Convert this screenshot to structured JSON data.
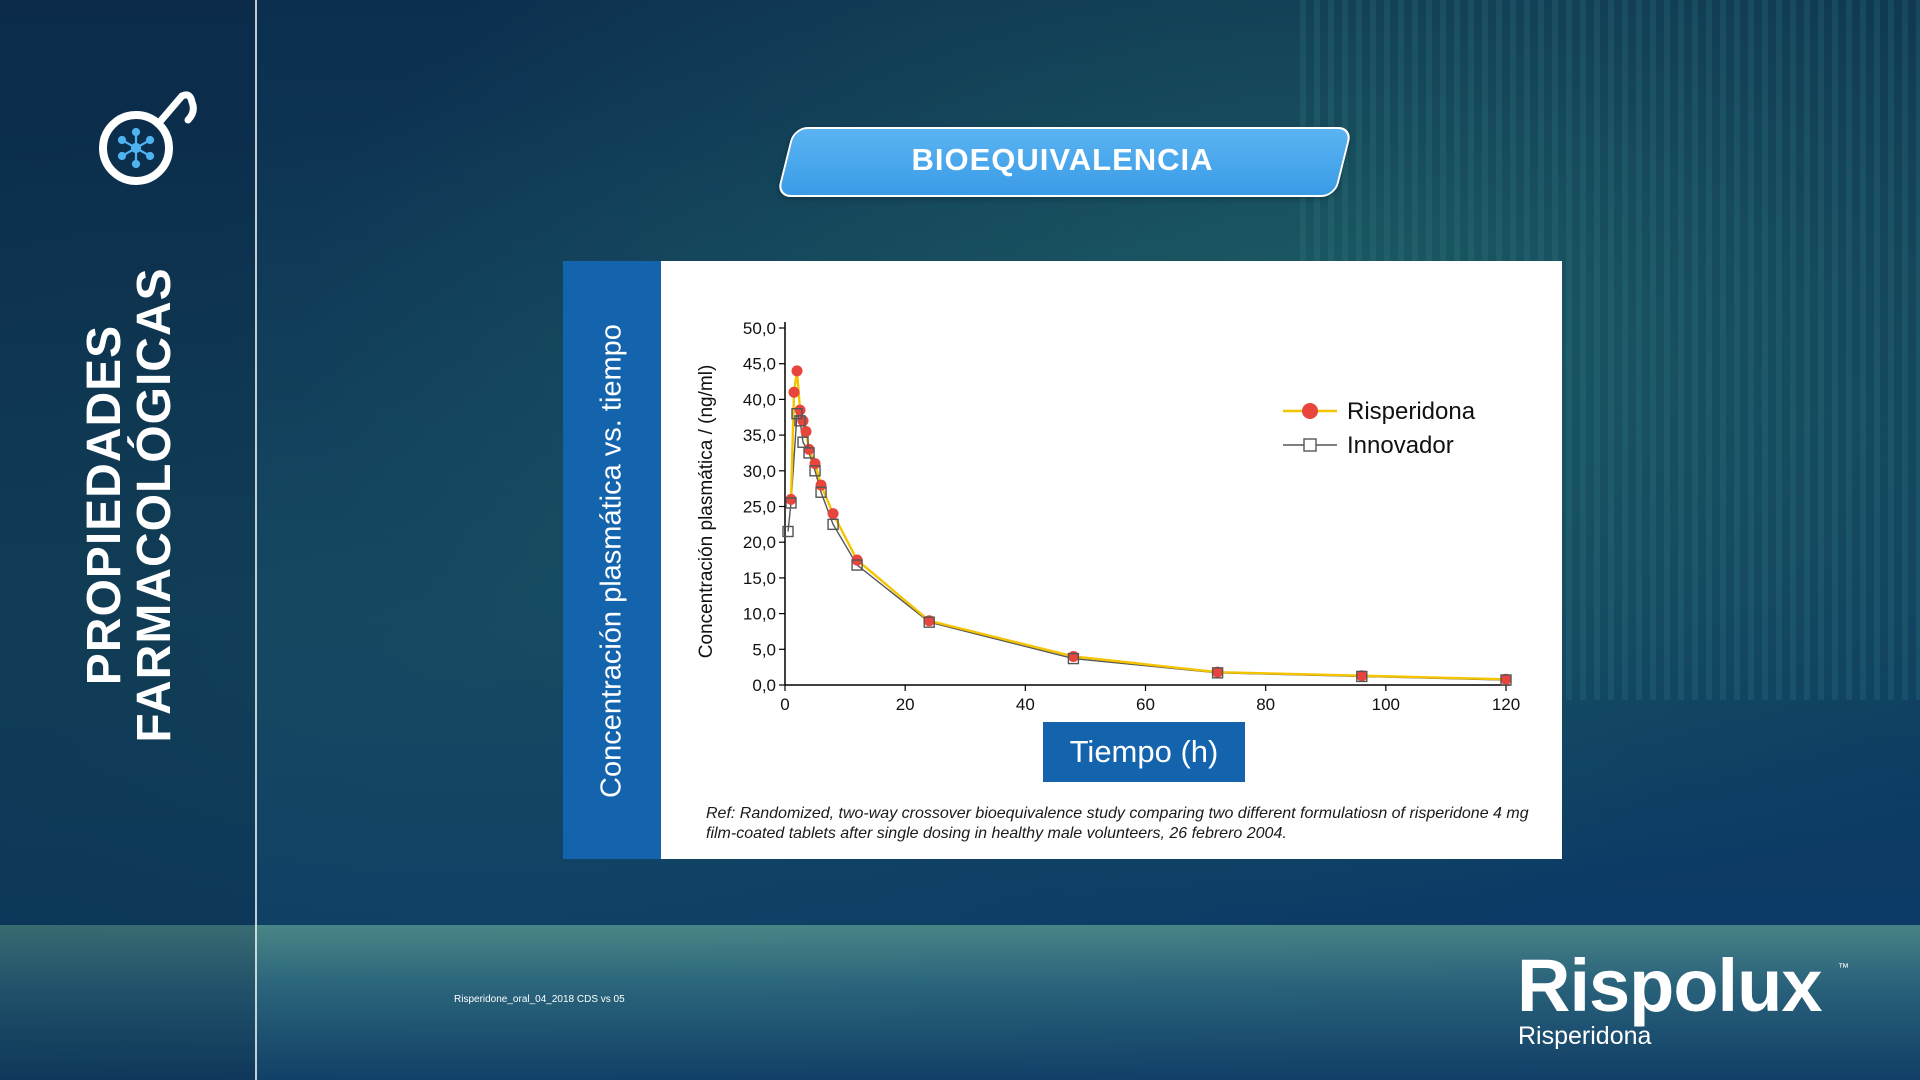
{
  "sidebar": {
    "title_line1": "PROPIEDADES",
    "title_line2": "FARMACOLÓGICAS",
    "icon": "molecule-note-icon"
  },
  "banner": {
    "title": "BIOEQUIVALENCIA"
  },
  "card": {
    "side_label": "Concentración plasmática vs. tiempo",
    "reference": "Ref: Randomized, two-way crossover bioequivalence study comparing two different formulatiosn of risperidone 4 mg film-coated tablets after single dosing in healthy male volunteers, 26 febrero 2004."
  },
  "footer": {
    "doc_code": "Risperidone_oral_04_2018 CDS vs 05",
    "brand": "Rispolux",
    "brand_tm": "™",
    "brand_sub": "Risperidona"
  },
  "colors": {
    "accent_blue": "#1463ad",
    "banner_blue": "#3a9be6",
    "risperidona_line": "#f5c400",
    "risperidona_marker": "#e8453c",
    "innovador": "#555555"
  },
  "chart_data": {
    "type": "line",
    "title": "",
    "xlabel": "Tiempo (h)",
    "ylabel": "Concentración plasmática / (ng/ml)",
    "xlim": [
      0,
      120
    ],
    "ylim": [
      0,
      50
    ],
    "xticks": [
      "0",
      "20",
      "40",
      "60",
      "80",
      "100",
      "120"
    ],
    "yticks": [
      "0,0",
      "5,0",
      "10,0",
      "15,0",
      "20,0",
      "25,0",
      "30,0",
      "35,0",
      "40,0",
      "45,0",
      "50,0"
    ],
    "legend_position": "top-right",
    "grid": false,
    "series": [
      {
        "name": "Risperidona",
        "x": [
          1,
          1.5,
          2,
          2.5,
          3,
          3.5,
          4,
          5,
          6,
          8,
          12,
          24,
          48,
          72,
          96,
          120
        ],
        "y": [
          26,
          41,
          44,
          38.5,
          37,
          35.5,
          33,
          31,
          28,
          24,
          17.5,
          9,
          4,
          1.8,
          1.3,
          0.8
        ]
      },
      {
        "name": "Innovador",
        "x": [
          0.5,
          1,
          2,
          2.5,
          3,
          4,
          5,
          6,
          8,
          12,
          24,
          48,
          72,
          96,
          120
        ],
        "y": [
          21.5,
          25.5,
          38,
          37,
          34,
          32.5,
          30,
          27,
          22.5,
          16.8,
          8.8,
          3.7,
          1.7,
          1.2,
          0.7
        ]
      }
    ]
  }
}
